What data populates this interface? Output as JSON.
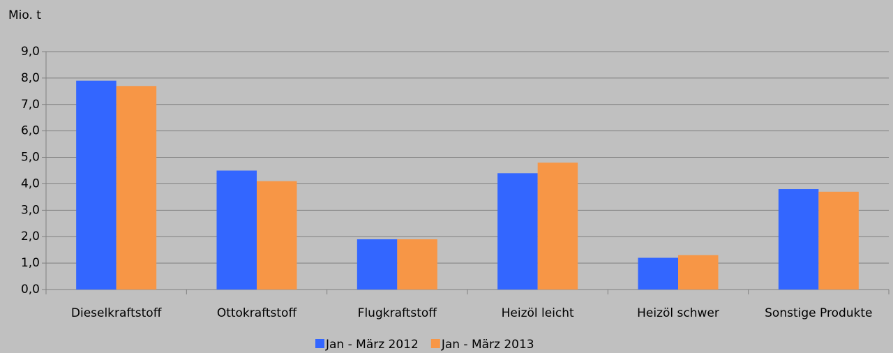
{
  "chart_data": {
    "type": "bar",
    "y_label": "Mio. t",
    "categories": [
      "Dieselkraftstoff",
      "Ottokraftstoff",
      "Flugkraftstoff",
      "Heizöl leicht",
      "Heizöl schwer",
      "Sonstige Produkte"
    ],
    "series": [
      {
        "name": "Jan - März 2012",
        "color": "#3366ff",
        "values": [
          7.9,
          4.5,
          1.9,
          4.4,
          1.2,
          3.8
        ]
      },
      {
        "name": "Jan - März 2013",
        "color": "#f79646",
        "values": [
          7.7,
          4.1,
          1.9,
          4.8,
          1.3,
          3.7
        ]
      }
    ],
    "ylim": [
      0,
      9
    ],
    "yticks": [
      {
        "value": 0,
        "label": "0,0"
      },
      {
        "value": 1,
        "label": "1,0"
      },
      {
        "value": 2,
        "label": "2,0"
      },
      {
        "value": 3,
        "label": "3,0"
      },
      {
        "value": 4,
        "label": "4,0"
      },
      {
        "value": 5,
        "label": "5,0"
      },
      {
        "value": 6,
        "label": "6,0"
      },
      {
        "value": 7,
        "label": "7,0"
      },
      {
        "value": 8,
        "label": "8,0"
      },
      {
        "value": 9,
        "label": "9,0"
      }
    ],
    "grid": true,
    "legend": "bottom"
  }
}
